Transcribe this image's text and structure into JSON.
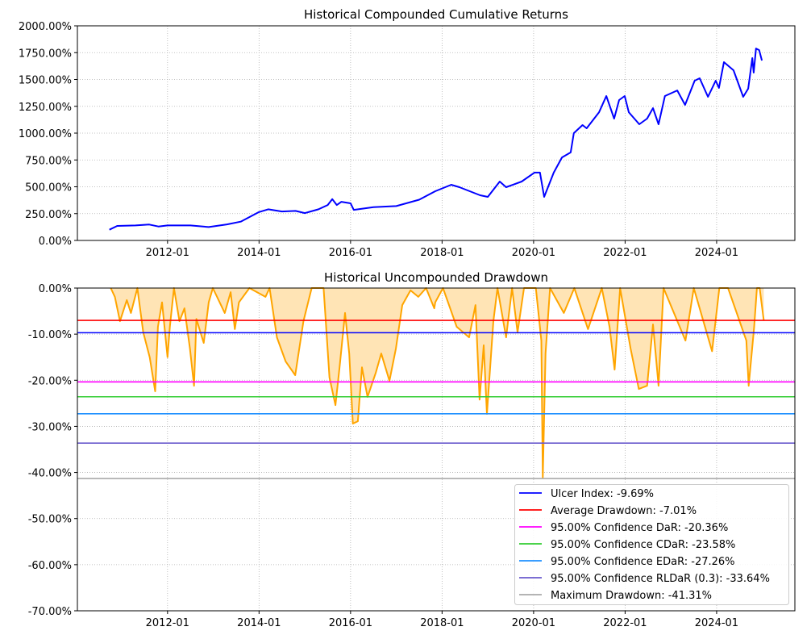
{
  "chart_data": [
    {
      "type": "line",
      "title": "Historical Compounded Cumulative Returns",
      "xlabel": "",
      "ylabel": "",
      "xlim": [
        2010.03,
        2025.71
      ],
      "ylim": [
        0,
        2000
      ],
      "grid": true,
      "x_ticks": [
        {
          "x": 2012,
          "label": "2012-01"
        },
        {
          "x": 2014,
          "label": "2014-01"
        },
        {
          "x": 2016,
          "label": "2016-01"
        },
        {
          "x": 2018,
          "label": "2018-01"
        },
        {
          "x": 2020,
          "label": "2020-01"
        },
        {
          "x": 2022,
          "label": "2022-01"
        },
        {
          "x": 2024,
          "label": "2024-01"
        }
      ],
      "y_ticks": [
        {
          "y": 0,
          "label": "0.00%"
        },
        {
          "y": 250,
          "label": "250.00%"
        },
        {
          "y": 500,
          "label": "500.00%"
        },
        {
          "y": 750,
          "label": "750.00%"
        },
        {
          "y": 1000,
          "label": "1000.00%"
        },
        {
          "y": 1250,
          "label": "1250.00%"
        },
        {
          "y": 1500,
          "label": "1500.00%"
        },
        {
          "y": 1750,
          "label": "1750.00%"
        },
        {
          "y": 2000,
          "label": "2000.00%"
        }
      ],
      "series": [
        {
          "name": "Cumulative Returns",
          "color": "#0000ff",
          "x": [
            2010.73,
            2010.9,
            2011.3,
            2011.6,
            2011.8,
            2012.0,
            2012.5,
            2012.9,
            2013.3,
            2013.6,
            2014.0,
            2014.2,
            2014.5,
            2014.8,
            2015.0,
            2015.3,
            2015.5,
            2015.6,
            2015.7,
            2015.8,
            2016.0,
            2016.07,
            2016.5,
            2017.0,
            2017.5,
            2017.85,
            2018.2,
            2018.38,
            2018.83,
            2019.0,
            2019.26,
            2019.4,
            2019.74,
            2020.02,
            2020.14,
            2020.23,
            2020.44,
            2020.62,
            2020.81,
            2020.88,
            2021.07,
            2021.16,
            2021.43,
            2021.59,
            2021.76,
            2021.87,
            2021.99,
            2022.08,
            2022.31,
            2022.48,
            2022.61,
            2022.73,
            2022.87,
            2023.14,
            2023.31,
            2023.52,
            2023.63,
            2023.81,
            2023.98,
            2024.05,
            2024.16,
            2024.37,
            2024.58,
            2024.69,
            2024.78,
            2024.81,
            2024.86,
            2024.93,
            2024.99
          ],
          "y": [
            100,
            135,
            140,
            148,
            130,
            140,
            140,
            125,
            150,
            175,
            265,
            290,
            270,
            275,
            255,
            290,
            330,
            385,
            330,
            360,
            346,
            285,
            310,
            320,
            380,
            459,
            519,
            496,
            421,
            406,
            549,
            496,
            549,
            632,
            632,
            406,
            632,
            774,
            820,
            1000,
            1075,
            1045,
            1195,
            1346,
            1135,
            1308,
            1346,
            1195,
            1083,
            1135,
            1233,
            1083,
            1346,
            1398,
            1263,
            1489,
            1511,
            1338,
            1489,
            1421,
            1662,
            1586,
            1338,
            1414,
            1699,
            1564,
            1789,
            1774,
            1677
          ]
        }
      ]
    },
    {
      "type": "area",
      "title": "Historical Uncompounded Drawdown",
      "xlabel": "",
      "ylabel": "",
      "xlim": [
        2010.03,
        2025.71
      ],
      "ylim": [
        -70,
        0
      ],
      "grid": true,
      "legend_position": "lower-right",
      "x_ticks": [
        {
          "x": 2012,
          "label": "2012-01"
        },
        {
          "x": 2014,
          "label": "2014-01"
        },
        {
          "x": 2016,
          "label": "2016-01"
        },
        {
          "x": 2018,
          "label": "2018-01"
        },
        {
          "x": 2020,
          "label": "2020-01"
        },
        {
          "x": 2022,
          "label": "2022-01"
        },
        {
          "x": 2024,
          "label": "2024-01"
        }
      ],
      "y_ticks": [
        {
          "y": 0,
          "label": "0.00%"
        },
        {
          "y": -10,
          "label": "-10.00%"
        },
        {
          "y": -20,
          "label": "-20.00%"
        },
        {
          "y": -30,
          "label": "-30.00%"
        },
        {
          "y": -40,
          "label": "-40.00%"
        },
        {
          "y": -50,
          "label": "-50.00%"
        },
        {
          "y": -60,
          "label": "-60.00%"
        },
        {
          "y": -70,
          "label": "-70.00%"
        }
      ],
      "series": [
        {
          "name": "Drawdown",
          "color": "#ffa500",
          "fill": "#ffe4b5",
          "x": [
            2010.76,
            2010.85,
            2010.96,
            2011.11,
            2011.2,
            2011.34,
            2011.47,
            2011.61,
            2011.73,
            2011.79,
            2011.88,
            2012.0,
            2012.05,
            2012.14,
            2012.26,
            2012.37,
            2012.49,
            2012.58,
            2012.63,
            2012.79,
            2012.9,
            2012.99,
            2013.25,
            2013.38,
            2013.47,
            2013.56,
            2013.79,
            2014.14,
            2014.23,
            2014.39,
            2014.58,
            2014.79,
            2014.97,
            2015.15,
            2015.41,
            2015.54,
            2015.67,
            2015.76,
            2015.88,
            2015.97,
            2016.05,
            2016.16,
            2016.25,
            2016.37,
            2016.55,
            2016.67,
            2016.85,
            2016.99,
            2017.13,
            2017.31,
            2017.48,
            2017.65,
            2017.83,
            2017.85,
            2018.02,
            2018.32,
            2018.59,
            2018.73,
            2018.82,
            2018.91,
            2018.98,
            2019.12,
            2019.21,
            2019.4,
            2019.53,
            2019.65,
            2019.79,
            2020.05,
            2020.17,
            2020.2,
            2020.26,
            2020.36,
            2020.66,
            2020.89,
            2021.19,
            2021.49,
            2021.66,
            2021.77,
            2021.89,
            2022.12,
            2022.3,
            2022.48,
            2022.61,
            2022.73,
            2022.84,
            2023.32,
            2023.5,
            2023.9,
            2024.06,
            2024.25,
            2024.65,
            2024.7,
            2024.82,
            2024.88,
            2024.94,
            2025.03
          ],
          "y": [
            0,
            -1.9,
            -7.2,
            -2.6,
            -5.4,
            0,
            -9.6,
            -15,
            -22.4,
            -8.4,
            -3.1,
            -15,
            -8.4,
            0,
            -7.2,
            -4.4,
            -13.1,
            -21.2,
            -6.7,
            -11.9,
            -3.1,
            0,
            -5.4,
            -0.9,
            -8.9,
            -3.1,
            0,
            -1.9,
            0,
            -10.7,
            -15.9,
            -18.9,
            -7.2,
            0,
            0,
            -19.4,
            -25.4,
            -17.2,
            -5.4,
            -14.2,
            -29.4,
            -28.9,
            -17.2,
            -23.6,
            -18.4,
            -14.2,
            -20.1,
            -13.1,
            -3.7,
            -0.5,
            -1.9,
            0,
            -4.4,
            -3.1,
            0,
            -8.4,
            -10.7,
            -3.7,
            -24.2,
            -12.4,
            -27.3,
            -7.2,
            0,
            -10.7,
            0,
            -9.6,
            0,
            0,
            -11.4,
            -41.1,
            -14.2,
            0,
            -5.4,
            0,
            -8.9,
            0,
            -8.4,
            -17.7,
            0,
            -13.1,
            -21.9,
            -21.2,
            -7.9,
            -21.2,
            0,
            -11.4,
            0,
            -13.7,
            0,
            0,
            -11.4,
            -21.2,
            -8.4,
            0,
            0,
            -7.0
          ]
        }
      ],
      "hlines": [
        {
          "label": "Ulcer Index: -9.69%",
          "value": -9.69,
          "color": "#0000ff"
        },
        {
          "label": "Average Drawdown: -7.01%",
          "value": -7.01,
          "color": "#ff0000"
        },
        {
          "label": "95.00% Confidence DaR: -20.36%",
          "value": -20.36,
          "color": "#ff00ff"
        },
        {
          "label": "95.00% Confidence CDaR: -23.58%",
          "value": -23.58,
          "color": "#32cd32"
        },
        {
          "label": "95.00% Confidence EDaR: -27.26%",
          "value": -27.26,
          "color": "#1e90ff"
        },
        {
          "label": "95.00% Confidence RLDaR (0.3): -33.64%",
          "value": -33.64,
          "color": "#6a5acd"
        },
        {
          "label": "Maximum Drawdown: -41.31%",
          "value": -41.31,
          "color": "#a9a9a9"
        }
      ]
    }
  ]
}
